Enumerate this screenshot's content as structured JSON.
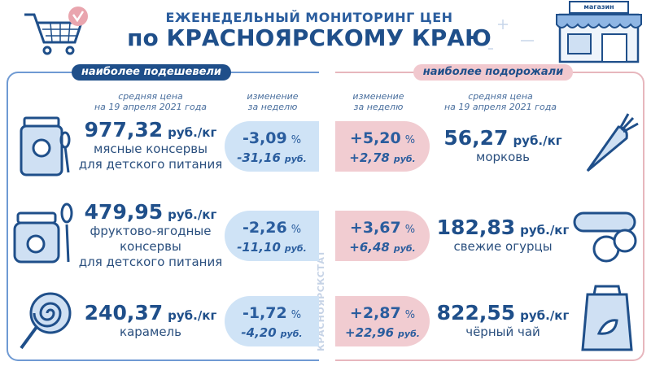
{
  "header": {
    "title_line1": "ЕЖЕНЕДЕЛЬНЫЙ МОНИТОРИНГ ЦЕН",
    "title_line2": "по КРАСНОЯРСКОМУ КРАЮ",
    "shop_sign": "магазин"
  },
  "cheaper": {
    "heading": "наиболее подешевели",
    "col_price": [
      "средняя цена",
      "на 19 апреля 2021 года"
    ],
    "col_change": [
      "изменение",
      "за неделю"
    ],
    "items": [
      {
        "price": "977,32",
        "unit": "руб./кг",
        "name": [
          "мясные консервы",
          "для детского питания"
        ],
        "change_pct": "-3,09",
        "pct_sign": "%",
        "change_rub": "-31,16",
        "rub_unit": "руб."
      },
      {
        "price": "479,95",
        "unit": "руб./кг",
        "name": [
          "фруктово-ягодные",
          "консервы",
          "для детского питания"
        ],
        "change_pct": "-2,26",
        "pct_sign": "%",
        "change_rub": "-11,10",
        "rub_unit": "руб."
      },
      {
        "price": "240,37",
        "unit": "руб./кг",
        "name": [
          "карамель"
        ],
        "change_pct": "-1,72",
        "pct_sign": "%",
        "change_rub": "-4,20",
        "rub_unit": "руб."
      }
    ]
  },
  "dearer": {
    "heading": "наиболее подорожали",
    "col_change": [
      "изменение",
      "за неделю"
    ],
    "col_price": [
      "средняя цена",
      "на 19 апреля 2021 года"
    ],
    "items": [
      {
        "price": "56,27",
        "unit": "руб./кг",
        "name": [
          "морковь"
        ],
        "change_pct": "+5,20",
        "pct_sign": "%",
        "change_rub": "+2,78",
        "rub_unit": "руб."
      },
      {
        "price": "182,83",
        "unit": "руб./кг",
        "name": [
          "свежие огурцы"
        ],
        "change_pct": "+3,67",
        "pct_sign": "%",
        "change_rub": "+6,48",
        "rub_unit": "руб."
      },
      {
        "price": "822,55",
        "unit": "руб./кг",
        "name": [
          "чёрный чай"
        ],
        "change_pct": "+2,87",
        "pct_sign": "%",
        "change_rub": "+22,96",
        "rub_unit": "руб."
      }
    ]
  },
  "source": "КРАСНОЯРСКСТАТ"
}
